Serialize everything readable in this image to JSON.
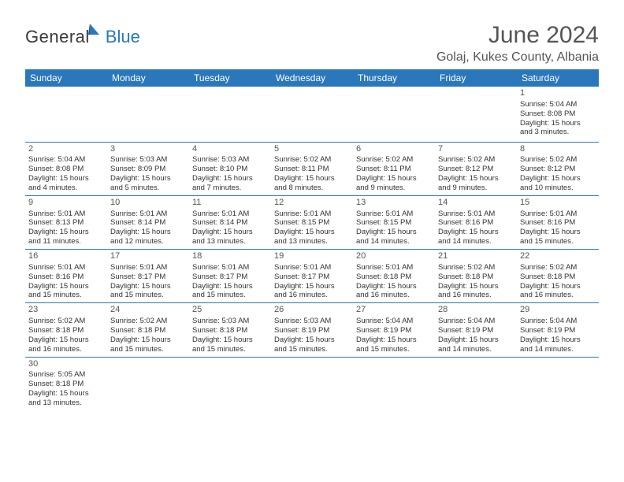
{
  "logo": {
    "general": "General",
    "blue": "Blue"
  },
  "title": "June 2024",
  "location": "Golaj, Kukes County, Albania",
  "colors": {
    "header_bg": "#2a77bb",
    "header_fg": "#ffffff",
    "border": "#2a77bb",
    "text": "#333333",
    "logo_blue": "#2a77bb",
    "background": "#ffffff"
  },
  "weekdays": [
    "Sunday",
    "Monday",
    "Tuesday",
    "Wednesday",
    "Thursday",
    "Friday",
    "Saturday"
  ],
  "weeks": [
    [
      null,
      null,
      null,
      null,
      null,
      null,
      {
        "d": "1",
        "sr": "5:04 AM",
        "ss": "8:08 PM",
        "dl1": "15 hours",
        "dl2": "and 3 minutes."
      }
    ],
    [
      {
        "d": "2",
        "sr": "5:04 AM",
        "ss": "8:08 PM",
        "dl1": "15 hours",
        "dl2": "and 4 minutes."
      },
      {
        "d": "3",
        "sr": "5:03 AM",
        "ss": "8:09 PM",
        "dl1": "15 hours",
        "dl2": "and 5 minutes."
      },
      {
        "d": "4",
        "sr": "5:03 AM",
        "ss": "8:10 PM",
        "dl1": "15 hours",
        "dl2": "and 7 minutes."
      },
      {
        "d": "5",
        "sr": "5:02 AM",
        "ss": "8:11 PM",
        "dl1": "15 hours",
        "dl2": "and 8 minutes."
      },
      {
        "d": "6",
        "sr": "5:02 AM",
        "ss": "8:11 PM",
        "dl1": "15 hours",
        "dl2": "and 9 minutes."
      },
      {
        "d": "7",
        "sr": "5:02 AM",
        "ss": "8:12 PM",
        "dl1": "15 hours",
        "dl2": "and 9 minutes."
      },
      {
        "d": "8",
        "sr": "5:02 AM",
        "ss": "8:12 PM",
        "dl1": "15 hours",
        "dl2": "and 10 minutes."
      }
    ],
    [
      {
        "d": "9",
        "sr": "5:01 AM",
        "ss": "8:13 PM",
        "dl1": "15 hours",
        "dl2": "and 11 minutes."
      },
      {
        "d": "10",
        "sr": "5:01 AM",
        "ss": "8:14 PM",
        "dl1": "15 hours",
        "dl2": "and 12 minutes."
      },
      {
        "d": "11",
        "sr": "5:01 AM",
        "ss": "8:14 PM",
        "dl1": "15 hours",
        "dl2": "and 13 minutes."
      },
      {
        "d": "12",
        "sr": "5:01 AM",
        "ss": "8:15 PM",
        "dl1": "15 hours",
        "dl2": "and 13 minutes."
      },
      {
        "d": "13",
        "sr": "5:01 AM",
        "ss": "8:15 PM",
        "dl1": "15 hours",
        "dl2": "and 14 minutes."
      },
      {
        "d": "14",
        "sr": "5:01 AM",
        "ss": "8:16 PM",
        "dl1": "15 hours",
        "dl2": "and 14 minutes."
      },
      {
        "d": "15",
        "sr": "5:01 AM",
        "ss": "8:16 PM",
        "dl1": "15 hours",
        "dl2": "and 15 minutes."
      }
    ],
    [
      {
        "d": "16",
        "sr": "5:01 AM",
        "ss": "8:16 PM",
        "dl1": "15 hours",
        "dl2": "and 15 minutes."
      },
      {
        "d": "17",
        "sr": "5:01 AM",
        "ss": "8:17 PM",
        "dl1": "15 hours",
        "dl2": "and 15 minutes."
      },
      {
        "d": "18",
        "sr": "5:01 AM",
        "ss": "8:17 PM",
        "dl1": "15 hours",
        "dl2": "and 15 minutes."
      },
      {
        "d": "19",
        "sr": "5:01 AM",
        "ss": "8:17 PM",
        "dl1": "15 hours",
        "dl2": "and 16 minutes."
      },
      {
        "d": "20",
        "sr": "5:01 AM",
        "ss": "8:18 PM",
        "dl1": "15 hours",
        "dl2": "and 16 minutes."
      },
      {
        "d": "21",
        "sr": "5:02 AM",
        "ss": "8:18 PM",
        "dl1": "15 hours",
        "dl2": "and 16 minutes."
      },
      {
        "d": "22",
        "sr": "5:02 AM",
        "ss": "8:18 PM",
        "dl1": "15 hours",
        "dl2": "and 16 minutes."
      }
    ],
    [
      {
        "d": "23",
        "sr": "5:02 AM",
        "ss": "8:18 PM",
        "dl1": "15 hours",
        "dl2": "and 16 minutes."
      },
      {
        "d": "24",
        "sr": "5:02 AM",
        "ss": "8:18 PM",
        "dl1": "15 hours",
        "dl2": "and 15 minutes."
      },
      {
        "d": "25",
        "sr": "5:03 AM",
        "ss": "8:18 PM",
        "dl1": "15 hours",
        "dl2": "and 15 minutes."
      },
      {
        "d": "26",
        "sr": "5:03 AM",
        "ss": "8:19 PM",
        "dl1": "15 hours",
        "dl2": "and 15 minutes."
      },
      {
        "d": "27",
        "sr": "5:04 AM",
        "ss": "8:19 PM",
        "dl1": "15 hours",
        "dl2": "and 15 minutes."
      },
      {
        "d": "28",
        "sr": "5:04 AM",
        "ss": "8:19 PM",
        "dl1": "15 hours",
        "dl2": "and 14 minutes."
      },
      {
        "d": "29",
        "sr": "5:04 AM",
        "ss": "8:19 PM",
        "dl1": "15 hours",
        "dl2": "and 14 minutes."
      }
    ],
    [
      {
        "d": "30",
        "sr": "5:05 AM",
        "ss": "8:18 PM",
        "dl1": "15 hours",
        "dl2": "and 13 minutes."
      },
      null,
      null,
      null,
      null,
      null,
      null
    ]
  ],
  "labels": {
    "sunrise_prefix": "Sunrise: ",
    "sunset_prefix": "Sunset: ",
    "daylight_prefix": "Daylight: "
  }
}
